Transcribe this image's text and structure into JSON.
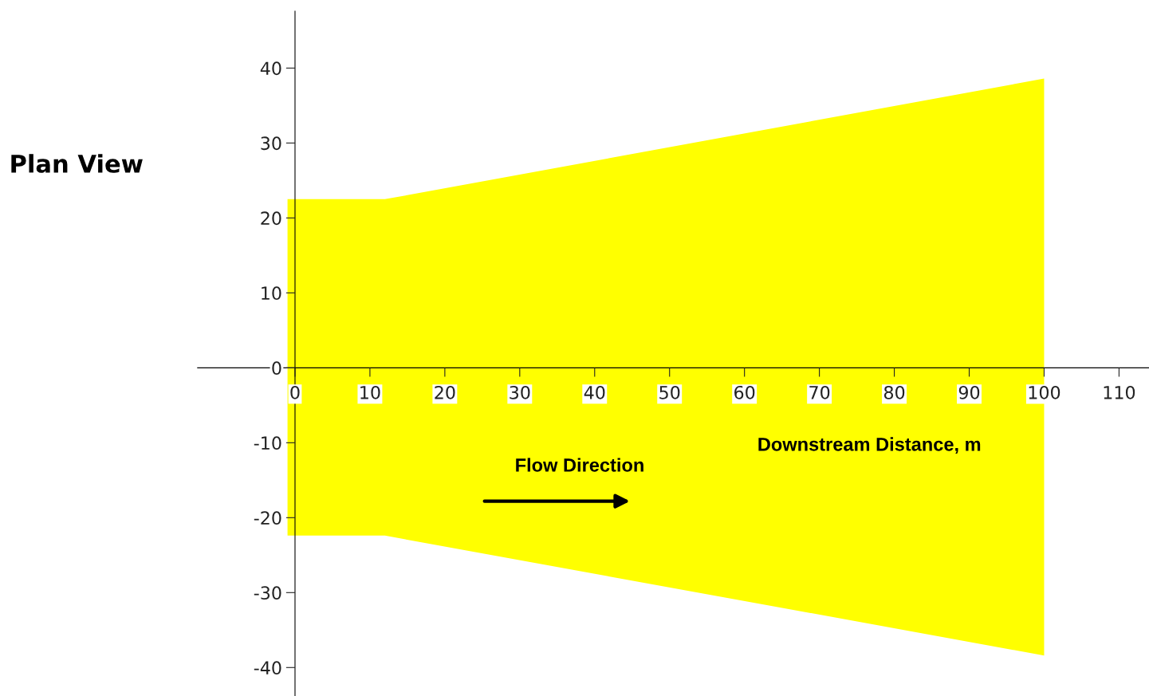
{
  "chart_data": {
    "type": "area",
    "xlabel": "Downstream Distance, m",
    "annotations": [
      "Plan View",
      "Flow Direction"
    ],
    "series": [
      {
        "x": [
          -1,
          12,
          100
        ],
        "values": [
          22.5,
          22.5,
          38.6
        ],
        "color": "#ffff00"
      },
      {
        "x": [
          -1,
          12,
          100
        ],
        "values": [
          -22.4,
          -22.4,
          -38.4
        ],
        "color": "#ffff00"
      }
    ],
    "xlim": [
      -13,
      114
    ],
    "ylim": [
      -43.8,
      47.6
    ],
    "xticks": [
      0,
      10,
      20,
      30,
      40,
      50,
      60,
      70,
      80,
      90,
      100,
      110
    ],
    "yticks": [
      -40,
      -30,
      -20,
      -10,
      0,
      10,
      20,
      30,
      40
    ],
    "grid": false,
    "legend": false
  }
}
